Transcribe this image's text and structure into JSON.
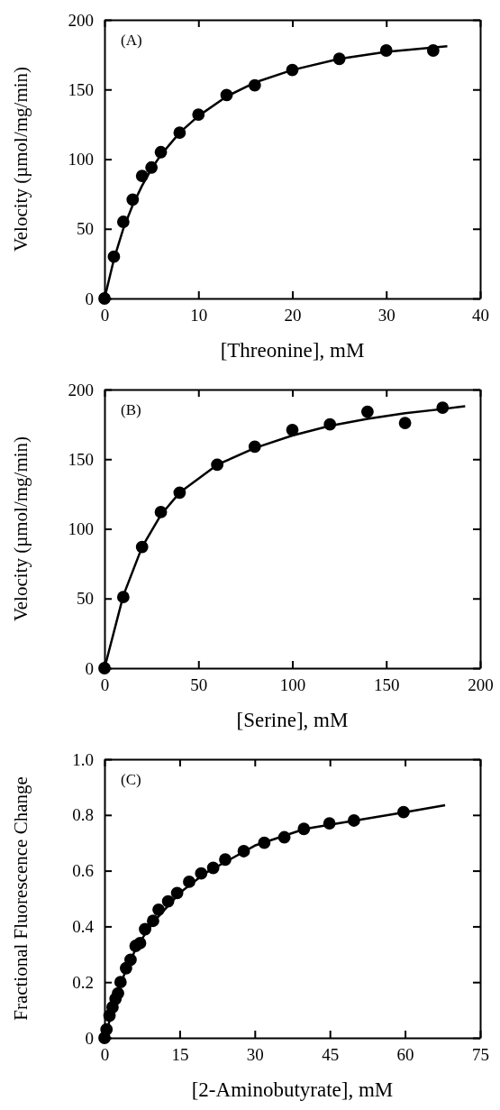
{
  "chart_data": [
    {
      "type": "scatter",
      "xlabel": "[Threonine], mM",
      "ylabel": "Velocity (µmol/mg/min)",
      "annotations": [
        "(A)"
      ],
      "xlim": [
        0,
        40
      ],
      "ylim": [
        0,
        200
      ],
      "xticks": [
        0,
        10,
        20,
        30,
        40
      ],
      "yticks": [
        0,
        50,
        100,
        150,
        200
      ],
      "series": [
        {
          "marker": "circle",
          "color": "#000000",
          "x": [
            0,
            1,
            2,
            3,
            4,
            5,
            6,
            8,
            10,
            13,
            16,
            20,
            25,
            30,
            35
          ],
          "values": [
            0,
            30,
            55,
            71,
            88,
            94,
            105,
            119,
            132,
            146,
            153,
            164,
            172,
            178,
            178
          ]
        },
        {
          "type": "line",
          "marker": "none",
          "color": "#000000",
          "x": [
            0,
            1,
            2,
            3,
            4,
            5,
            6,
            8,
            10,
            13,
            16,
            20,
            25,
            30,
            36.5
          ],
          "values": [
            0,
            28,
            50,
            67,
            81,
            93,
            103,
            119,
            131,
            145,
            155,
            164,
            172,
            177,
            181
          ]
        }
      ]
    },
    {
      "type": "scatter",
      "xlabel": "[Serine], mM",
      "ylabel": "Velocity (µmol/mg/min)",
      "annotations": [
        "(B)"
      ],
      "xlim": [
        0,
        200
      ],
      "ylim": [
        0,
        200
      ],
      "xticks": [
        0,
        50,
        100,
        150,
        200
      ],
      "yticks": [
        0,
        50,
        100,
        150,
        200
      ],
      "series": [
        {
          "marker": "circle",
          "color": "#000000",
          "x": [
            0,
            10,
            20,
            30,
            40,
            60,
            80,
            100,
            120,
            140,
            160,
            180
          ],
          "values": [
            0,
            51,
            87,
            112,
            126,
            146,
            159,
            171,
            175,
            184,
            176,
            187
          ]
        },
        {
          "type": "line",
          "marker": "none",
          "color": "#000000",
          "x": [
            0,
            10,
            20,
            30,
            40,
            60,
            80,
            100,
            120,
            140,
            160,
            180,
            192
          ],
          "values": [
            0,
            52,
            87,
            110,
            126,
            146,
            158,
            167,
            174,
            179,
            183,
            186,
            188
          ]
        }
      ]
    },
    {
      "type": "scatter",
      "xlabel": "[2-Aminobutyrate], mM",
      "ylabel": "Fractional Fluorescence Change",
      "annotations": [
        "(C)"
      ],
      "xlim": [
        0,
        75
      ],
      "ylim": [
        0,
        1.0
      ],
      "xticks": [
        0,
        15,
        30,
        45,
        60,
        75
      ],
      "yticks": [
        0,
        0.2,
        0.4,
        0.6,
        0.8,
        {
          "value": 1,
          "label": "1.0"
        }
      ],
      "series": [
        {
          "marker": "circle",
          "color": "#000000",
          "x": [
            0,
            0.4,
            1.0,
            1.6,
            2.2,
            2.7,
            3.2,
            4.3,
            5.2,
            6.2,
            7.1,
            8.1,
            9.7,
            10.8,
            12.7,
            14.5,
            16.9,
            19.3,
            21.7,
            24.1,
            27.8,
            31.9,
            35.9,
            39.8,
            44.9,
            49.8,
            59.7
          ],
          "values": [
            0,
            0.03,
            0.08,
            0.11,
            0.14,
            0.16,
            0.2,
            0.25,
            0.28,
            0.33,
            0.34,
            0.39,
            0.42,
            0.46,
            0.49,
            0.52,
            0.56,
            0.59,
            0.61,
            0.64,
            0.67,
            0.7,
            0.72,
            0.75,
            0.77,
            0.78,
            0.81
          ]
        },
        {
          "type": "line",
          "marker": "none",
          "color": "#000000",
          "x": [
            0,
            1,
            2,
            3,
            4,
            6,
            8,
            10,
            15,
            20,
            25,
            30,
            40,
            50,
            60,
            68
          ],
          "values": [
            0,
            0.06,
            0.12,
            0.18,
            0.23,
            0.31,
            0.37,
            0.42,
            0.52,
            0.59,
            0.64,
            0.69,
            0.75,
            0.78,
            0.81,
            0.835
          ]
        }
      ]
    }
  ]
}
